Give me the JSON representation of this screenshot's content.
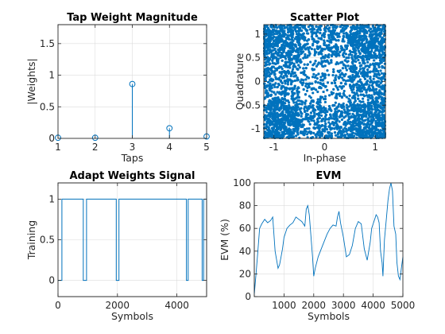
{
  "colors": {
    "series": "#0072BD",
    "axis": "#262626",
    "grid": "#dcdcdc"
  },
  "chart_data": [
    {
      "type": "stem",
      "title": "Tap Weight Magnitude",
      "xlabel": "Taps",
      "ylabel": "|Weights|",
      "xlim": [
        1,
        5
      ],
      "ylim": [
        0,
        1.8
      ],
      "xticks": [
        "1",
        "2",
        "3",
        "4",
        "5"
      ],
      "yticks": [
        "0",
        "0.5",
        "1",
        "1.5"
      ],
      "x": [
        1,
        2,
        3,
        4,
        5
      ],
      "values": [
        0.01,
        0.01,
        0.86,
        0.16,
        0.03
      ],
      "grid": true
    },
    {
      "type": "scatter",
      "title": "Scatter Plot",
      "xlabel": "In-phase",
      "ylabel": "Quadrature",
      "xlim": [
        -1.2,
        1.2
      ],
      "ylim": [
        -1.2,
        1.2
      ],
      "xticks": [
        "-1",
        "0",
        "1"
      ],
      "yticks": [
        "-1",
        "-0.5",
        "0",
        "0.5",
        "1"
      ],
      "points": "dense cloud of ~5000 equalized symbols filling [-1.2, 1.2] x [-1.2, 1.2]",
      "grid": true
    },
    {
      "type": "line",
      "title": "Adapt Weights Signal",
      "xlabel": "Symbols",
      "ylabel": "Training",
      "xlim": [
        0,
        5000
      ],
      "ylim": [
        -0.2,
        1.2
      ],
      "xticks": [
        "0",
        "2000",
        "4000"
      ],
      "yticks": [
        "0",
        "0.5",
        "1"
      ],
      "x": [
        0,
        130,
        130,
        850,
        850,
        960,
        960,
        1960,
        1960,
        2050,
        2050,
        4320,
        4320,
        4380,
        4380,
        4850,
        4850,
        4900,
        4900,
        5000
      ],
      "values": [
        0,
        0,
        1,
        1,
        0,
        0,
        1,
        1,
        0,
        0,
        1,
        1,
        0,
        0,
        1,
        1,
        0,
        0,
        1,
        1
      ],
      "grid": true
    },
    {
      "type": "line",
      "title": "EVM",
      "xlabel": "Symbols",
      "ylabel": "EVM (%)",
      "xlim": [
        0,
        5000
      ],
      "ylim": [
        0,
        100
      ],
      "xticks": [
        "1000",
        "2000",
        "3000",
        "4000",
        "5000"
      ],
      "yticks": [
        "0",
        "20",
        "40",
        "60",
        "80",
        "100"
      ],
      "x": [
        0,
        60,
        120,
        180,
        250,
        350,
        450,
        550,
        620,
        700,
        800,
        850,
        900,
        950,
        1000,
        1100,
        1200,
        1300,
        1400,
        1500,
        1600,
        1700,
        1750,
        1800,
        1850,
        1900,
        1960,
        2000,
        2050,
        2150,
        2300,
        2450,
        2550,
        2650,
        2750,
        2800,
        2850,
        2900,
        3000,
        3100,
        3200,
        3300,
        3400,
        3500,
        3600,
        3700,
        3800,
        3900,
        3950,
        4000,
        4050,
        4100,
        4150,
        4200,
        4250,
        4300,
        4330,
        4380,
        4450,
        4500,
        4550,
        4600,
        4650,
        4700,
        4760,
        4800,
        4850,
        4900,
        4950,
        5000
      ],
      "values": [
        2,
        20,
        40,
        60,
        64,
        68,
        65,
        67,
        70,
        40,
        25,
        28,
        35,
        42,
        52,
        60,
        63,
        65,
        70,
        68,
        66,
        62,
        77,
        80,
        72,
        55,
        35,
        18,
        25,
        35,
        45,
        55,
        60,
        63,
        62,
        70,
        75,
        65,
        52,
        35,
        37,
        45,
        60,
        66,
        64,
        42,
        32,
        48,
        60,
        64,
        68,
        72,
        70,
        65,
        40,
        30,
        18,
        50,
        70,
        85,
        95,
        100,
        93,
        62,
        55,
        30,
        18,
        15,
        25,
        35
      ],
      "grid": true
    }
  ]
}
